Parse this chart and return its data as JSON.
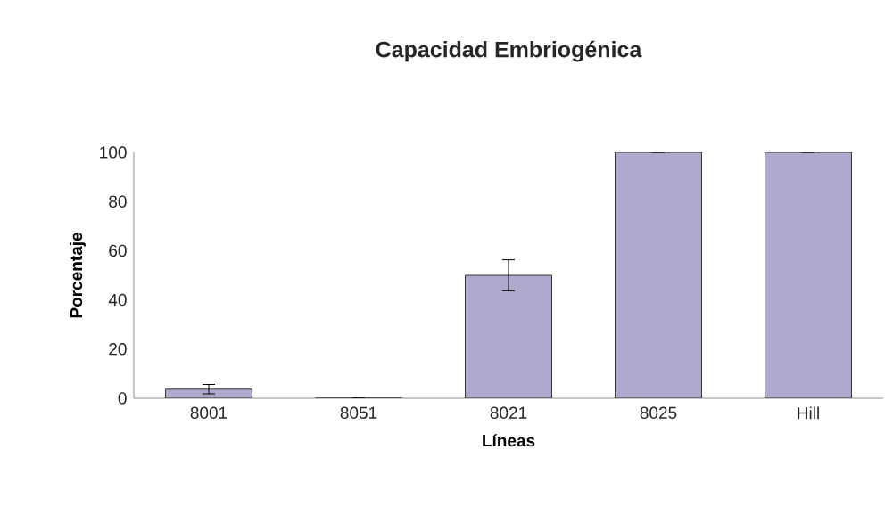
{
  "chart_data": {
    "type": "bar",
    "title": "Capacidad Embriogénica",
    "xlabel": "Líneas",
    "ylabel": "Porcentaje",
    "categories": [
      "8001",
      "8051",
      "8021",
      "8025",
      "Hill"
    ],
    "values": [
      3.7,
      0,
      50,
      100,
      100
    ],
    "errors": [
      1.9,
      0,
      6.3,
      0,
      0
    ],
    "color": "#aeaacd",
    "ylim": [
      0,
      100
    ],
    "yticks": [
      0,
      20,
      40,
      60,
      80,
      100
    ],
    "grid": false
  }
}
